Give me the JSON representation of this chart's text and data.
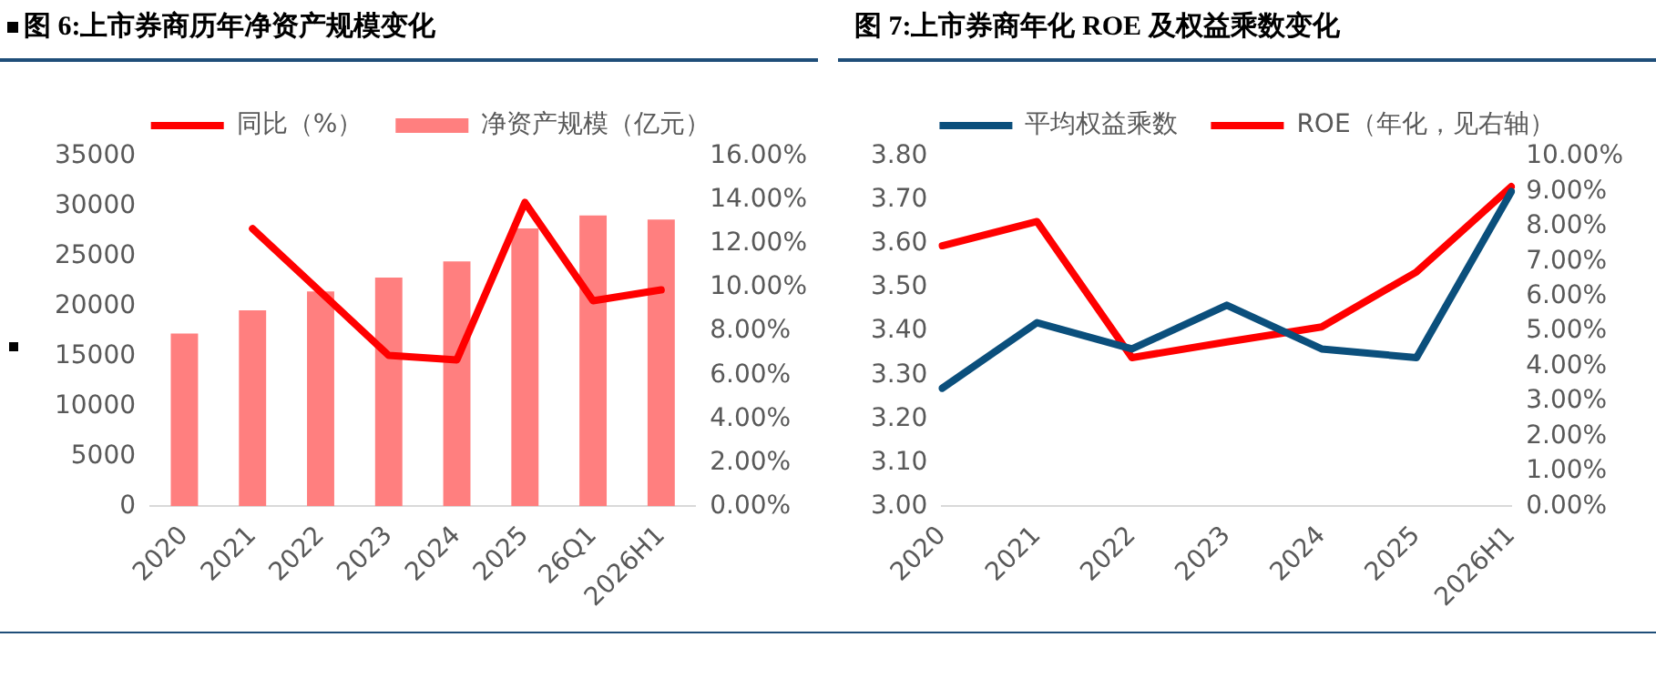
{
  "chart_data": [
    {
      "type": "bar",
      "title": "图 6:上市券商历年净资产规模变化",
      "categories": [
        "2020",
        "2021",
        "2022",
        "2023",
        "2024",
        "2025",
        "26Q1",
        "2026H1"
      ],
      "series": [
        {
          "name": "净资产规模（亿元）",
          "type": "bar",
          "color": "#ff7f7f",
          "values": [
            17300,
            19600,
            21500,
            22900,
            24500,
            27800,
            29100,
            28700
          ]
        },
        {
          "name": "同比（%）",
          "type": "line",
          "axis": "y2",
          "color": "#ff0000",
          "values": [
            null,
            12.7,
            9.8,
            6.9,
            6.7,
            13.9,
            9.4,
            9.9
          ]
        }
      ],
      "ylim": [
        0,
        35000
      ],
      "yticks": [
        0,
        5000,
        10000,
        15000,
        20000,
        25000,
        30000,
        35000
      ],
      "y2lim": [
        0,
        16
      ],
      "y2ticks": [
        {
          "value": 0,
          "label": "0.00%"
        },
        {
          "value": 2,
          "label": "2.00%"
        },
        {
          "value": 4,
          "label": "4.00%"
        },
        {
          "value": 6,
          "label": "6.00%"
        },
        {
          "value": 8,
          "label": "8.00%"
        },
        {
          "value": 10,
          "label": "10.00%"
        },
        {
          "value": 12,
          "label": "12.00%"
        },
        {
          "value": 14,
          "label": "14.00%"
        },
        {
          "value": 16,
          "label": "16.00%"
        }
      ],
      "grid": false,
      "legend": "top",
      "marker": "none"
    },
    {
      "type": "line",
      "title": "图 7:上市券商年化 ROE 及权益乘数变化",
      "categories": [
        "2020",
        "2021",
        "2022",
        "2023",
        "2024",
        "2025",
        "2026H1"
      ],
      "series": [
        {
          "name": "平均权益乘数",
          "color": "#0b4f7c",
          "values": [
            3.27,
            3.42,
            3.36,
            3.46,
            3.36,
            3.34,
            3.72
          ]
        },
        {
          "name": "ROE（年化，见右轴）",
          "axis": "y2",
          "color": "#ff0000",
          "values": [
            7.45,
            8.14,
            4.25,
            4.7,
            5.13,
            6.7,
            9.14
          ]
        }
      ],
      "ylim": [
        3.0,
        3.8
      ],
      "yticks": [
        {
          "value": 3.0,
          "label": "3.00"
        },
        {
          "value": 3.1,
          "label": "3.10"
        },
        {
          "value": 3.2,
          "label": "3.20"
        },
        {
          "value": 3.3,
          "label": "3.30"
        },
        {
          "value": 3.4,
          "label": "3.40"
        },
        {
          "value": 3.5,
          "label": "3.50"
        },
        {
          "value": 3.6,
          "label": "3.60"
        },
        {
          "value": 3.7,
          "label": "3.70"
        },
        {
          "value": 3.8,
          "label": "3.80"
        }
      ],
      "y2lim": [
        0,
        10
      ],
      "y2ticks": [
        {
          "value": 0,
          "label": "0.00%"
        },
        {
          "value": 1,
          "label": "1.00%"
        },
        {
          "value": 2,
          "label": "2.00%"
        },
        {
          "value": 3,
          "label": "3.00%"
        },
        {
          "value": 4,
          "label": "4.00%"
        },
        {
          "value": 5,
          "label": "5.00%"
        },
        {
          "value": 6,
          "label": "6.00%"
        },
        {
          "value": 7,
          "label": "7.00%"
        },
        {
          "value": 8,
          "label": "8.00%"
        },
        {
          "value": 9,
          "label": "9.00%"
        },
        {
          "value": 10,
          "label": "10.00%"
        }
      ],
      "grid": false,
      "legend": "top",
      "marker": "none"
    }
  ]
}
